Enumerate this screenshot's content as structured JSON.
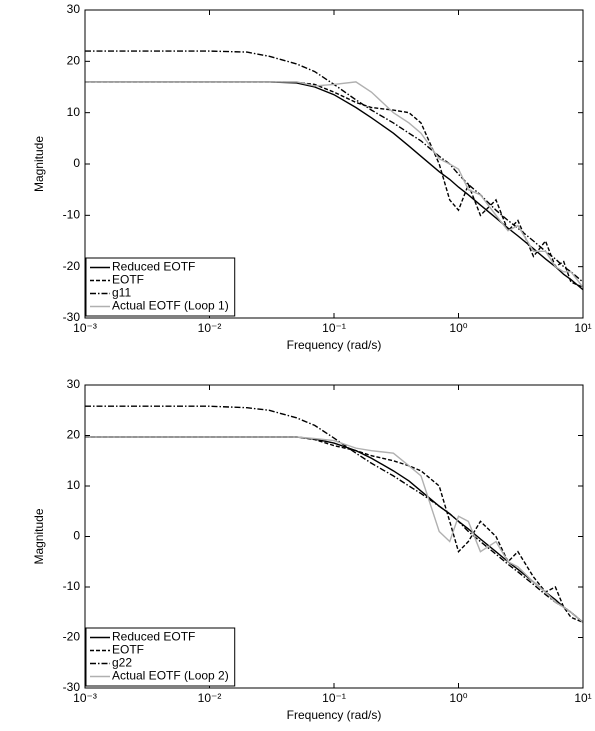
{
  "chart_data": [
    {
      "type": "line",
      "xlabel": "Frequency (rad/s)",
      "ylabel": "Magnitude",
      "xscale": "log",
      "legend": "lower left",
      "grid": false,
      "xlim": [
        0.001,
        10
      ],
      "ylim": [
        -30,
        30
      ],
      "xticks": [
        {
          "value": 0.001,
          "label": "10⁻³"
        },
        {
          "value": 0.01,
          "label": "10⁻²"
        },
        {
          "value": 0.1,
          "label": "10⁻¹"
        },
        {
          "value": 1,
          "label": "10⁰"
        },
        {
          "value": 10,
          "label": "10¹"
        }
      ],
      "yticks": [
        -30,
        -20,
        -10,
        0,
        10,
        20,
        30
      ],
      "x": [
        0.001,
        0.002,
        0.005,
        0.01,
        0.02,
        0.03,
        0.05,
        0.07,
        0.1,
        0.15,
        0.2,
        0.3,
        0.4,
        0.5,
        0.7,
        0.85,
        1,
        1.2,
        1.5,
        2,
        2.5,
        3,
        4,
        5,
        6,
        7,
        8,
        10
      ],
      "series": [
        {
          "name": "Reduced EOTF",
          "color": "#000000",
          "dash": "solid",
          "values": [
            16,
            16,
            16,
            16,
            16,
            16,
            15.8,
            15,
            13.5,
            11,
            9,
            6,
            3.5,
            1.5,
            -1.5,
            -3,
            -4.5,
            -6,
            -8,
            -10.5,
            -12.5,
            -14,
            -16.5,
            -18.5,
            -20,
            -21.5,
            -22.5,
            -24.5
          ]
        },
        {
          "name": "EOTF",
          "color": "#000000",
          "dash": "dashed",
          "values": [
            16,
            16,
            16,
            16,
            16,
            16,
            15.9,
            15.5,
            14,
            12,
            11,
            10.5,
            10,
            8,
            0,
            -7,
            -9,
            -4,
            -10,
            -7,
            -13,
            -11,
            -18,
            -15,
            -20,
            -19,
            -23,
            -24
          ]
        },
        {
          "name": "g11",
          "color": "#000000",
          "dash": "dashdot",
          "values": [
            22,
            22,
            22,
            22,
            21.8,
            21,
            19.5,
            18,
            15.5,
            12.5,
            10.5,
            8,
            6,
            4.5,
            1.5,
            0,
            -2,
            -4,
            -6,
            -9,
            -11,
            -12.5,
            -15,
            -17,
            -18.5,
            -20,
            -21,
            -23
          ]
        },
        {
          "name": "Actual EOTF (Loop 1)",
          "color": "#b0b0b0",
          "dash": "solid",
          "values": [
            16,
            16,
            16,
            16,
            16,
            16,
            16,
            15.2,
            15.5,
            16,
            14,
            10,
            8,
            6,
            1,
            0,
            -1,
            -5,
            -6,
            -10,
            -13,
            -12,
            -17,
            -17,
            -20,
            -21,
            -21,
            -24
          ]
        }
      ]
    },
    {
      "type": "line",
      "xlabel": "Frequency (rad/s)",
      "ylabel": "Magnitude",
      "xscale": "log",
      "legend": "lower left",
      "grid": false,
      "xlim": [
        0.001,
        10
      ],
      "ylim": [
        -30,
        30
      ],
      "xticks": [
        {
          "value": 0.001,
          "label": "10⁻³"
        },
        {
          "value": 0.01,
          "label": "10⁻²"
        },
        {
          "value": 0.1,
          "label": "10⁻¹"
        },
        {
          "value": 1,
          "label": "10⁰"
        },
        {
          "value": 10,
          "label": "10¹"
        }
      ],
      "yticks": [
        -30,
        -20,
        -10,
        0,
        10,
        20,
        30
      ],
      "x": [
        0.001,
        0.002,
        0.005,
        0.01,
        0.02,
        0.03,
        0.05,
        0.07,
        0.1,
        0.15,
        0.2,
        0.3,
        0.4,
        0.5,
        0.7,
        0.85,
        1,
        1.2,
        1.5,
        2,
        2.5,
        3,
        4,
        5,
        6,
        7,
        8,
        10
      ],
      "series": [
        {
          "name": "Reduced EOTF",
          "color": "#000000",
          "dash": "solid",
          "values": [
            19.7,
            19.7,
            19.7,
            19.7,
            19.7,
            19.7,
            19.7,
            19.3,
            18.5,
            17,
            15.5,
            13,
            11,
            9,
            6,
            4.5,
            3,
            1.5,
            -0.5,
            -3,
            -5,
            -6.5,
            -9,
            -11,
            -12.5,
            -14,
            -15,
            -17
          ]
        },
        {
          "name": "EOTF",
          "color": "#000000",
          "dash": "dashed",
          "values": [
            19.7,
            19.7,
            19.7,
            19.7,
            19.7,
            19.7,
            19.7,
            19.2,
            18,
            17,
            16,
            15,
            14,
            13,
            10,
            3,
            -3,
            -1,
            3,
            0,
            -5,
            -3,
            -8,
            -11,
            -10,
            -14,
            -16,
            -17
          ]
        },
        {
          "name": "g22",
          "color": "#000000",
          "dash": "dashdot",
          "values": [
            25.8,
            25.8,
            25.8,
            25.8,
            25.5,
            25,
            23.5,
            22,
            19.5,
            16.5,
            14.5,
            12,
            10,
            8.5,
            6,
            4.5,
            3,
            1,
            -1,
            -3.5,
            -5.5,
            -7,
            -9.5,
            -11.5,
            -13,
            -14,
            -15,
            -17
          ]
        },
        {
          "name": "Actual EOTF (Loop 2)",
          "color": "#b0b0b0",
          "dash": "solid",
          "values": [
            19.7,
            19.7,
            19.7,
            19.7,
            19.7,
            19.7,
            19.7,
            19.4,
            19,
            17.5,
            17,
            16.5,
            14,
            12,
            1,
            -1,
            4,
            3,
            -3,
            -1,
            -5,
            -6,
            -9,
            -11,
            -13,
            -14,
            -15,
            -17
          ]
        }
      ]
    }
  ]
}
